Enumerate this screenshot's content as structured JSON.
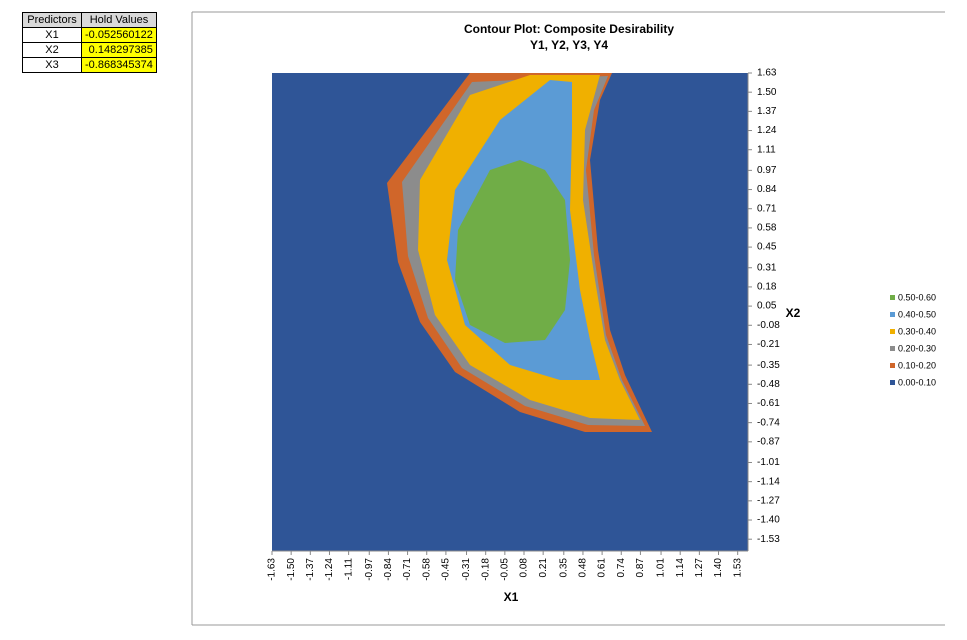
{
  "table": {
    "header": [
      "Predictors",
      "Hold Values"
    ],
    "rows": [
      [
        "X1",
        "-0.052560122"
      ],
      [
        "X2",
        "0.148297385"
      ],
      [
        "X3",
        "-0.868345374"
      ]
    ]
  },
  "chart_data": {
    "type": "contour",
    "title": "Contour Plot: Composite Desirability",
    "subtitle": "Y1, Y2, Y3, Y4",
    "x_label": "X1",
    "y_label": "X2",
    "background": "#2f5597",
    "series": [
      {
        "name": "0.50-0.60",
        "color": "#70ad47"
      },
      {
        "name": "0.40-0.50",
        "color": "#5b9bd5"
      },
      {
        "name": "0.30-0.40",
        "color": "#f0b000"
      },
      {
        "name": "0.20-0.30",
        "color": "#8c8c8c"
      },
      {
        "name": "0.10-0.20",
        "color": "#d0662a"
      },
      {
        "name": "0.00-0.10",
        "color": "#2f5597"
      }
    ],
    "xlim": [
      -1.63,
      1.6
    ],
    "ylim": [
      -1.61,
      1.63
    ],
    "xticks": [
      -1.63,
      {
        "value": -1.5,
        "label": "-1.50"
      },
      -1.37,
      -1.24,
      -1.11,
      -0.97,
      -0.84,
      -0.71,
      -0.58,
      -0.45,
      -0.31,
      -0.18,
      -0.05,
      0.08,
      0.21,
      0.35,
      0.48,
      0.61,
      0.74,
      0.87,
      1.01,
      1.14,
      1.27,
      {
        "value": 1.4,
        "label": "1.40"
      },
      1.53
    ],
    "yticks": [
      1.63,
      {
        "value": 1.5,
        "label": "1.50"
      },
      1.37,
      1.24,
      1.11,
      0.97,
      0.84,
      0.71,
      0.58,
      0.45,
      0.31,
      0.18,
      0.05,
      -0.08,
      -0.21,
      -0.35,
      -0.48,
      -0.61,
      -0.74,
      -0.87,
      -1.01,
      -1.14,
      -1.27,
      {
        "value": -1.4,
        "label": "-1.40"
      },
      -1.53
    ]
  }
}
